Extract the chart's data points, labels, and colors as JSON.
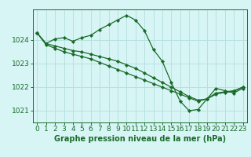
{
  "title": "Graphe pression niveau de la mer (hPa)",
  "bg_color": "#d8f5f5",
  "grid_color": "#b8e0e0",
  "line_color": "#1a6b2a",
  "ylim": [
    1020.5,
    1025.3
  ],
  "xlim": [
    -0.5,
    23.5
  ],
  "yticks": [
    1021,
    1022,
    1023,
    1024
  ],
  "xticks": [
    0,
    1,
    2,
    3,
    4,
    5,
    6,
    7,
    8,
    9,
    10,
    11,
    12,
    13,
    14,
    15,
    16,
    17,
    18,
    19,
    20,
    21,
    22,
    23
  ],
  "series1_x": [
    0,
    1,
    2,
    3,
    4,
    5,
    6,
    7,
    8,
    9,
    10,
    11,
    12,
    13,
    14,
    15,
    16,
    17,
    18,
    19,
    20,
    21,
    22,
    23
  ],
  "series1_y": [
    1024.3,
    1023.85,
    1024.05,
    1024.1,
    1023.95,
    1024.1,
    1024.2,
    1024.45,
    1024.65,
    1024.85,
    1025.05,
    1024.85,
    1024.4,
    1023.6,
    1023.1,
    1022.2,
    1021.4,
    1021.0,
    1021.05,
    1021.5,
    1021.95,
    1021.85,
    1021.75,
    1021.95
  ],
  "series2_x": [
    0,
    1,
    2,
    3,
    4,
    5,
    6,
    7,
    8,
    9,
    10,
    11,
    12,
    13,
    14,
    15,
    16,
    17,
    18,
    19,
    20,
    21,
    22,
    23
  ],
  "series2_y": [
    1024.3,
    1023.85,
    1023.75,
    1023.65,
    1023.55,
    1023.5,
    1023.4,
    1023.3,
    1023.2,
    1023.1,
    1022.95,
    1022.8,
    1022.6,
    1022.4,
    1022.2,
    1022.0,
    1021.8,
    1021.6,
    1021.45,
    1021.5,
    1021.75,
    1021.8,
    1021.85,
    1022.0
  ],
  "series3_x": [
    0,
    1,
    2,
    3,
    4,
    5,
    6,
    7,
    8,
    9,
    10,
    11,
    12,
    13,
    14,
    15,
    16,
    17,
    18,
    19,
    20,
    21,
    22,
    23
  ],
  "series3_y": [
    1024.3,
    1023.8,
    1023.65,
    1023.5,
    1023.4,
    1023.3,
    1023.2,
    1023.05,
    1022.9,
    1022.75,
    1022.6,
    1022.45,
    1022.3,
    1022.15,
    1022.0,
    1021.85,
    1021.7,
    1021.55,
    1021.4,
    1021.5,
    1021.7,
    1021.78,
    1021.82,
    1022.0
  ],
  "tick_fontsize": 6.5,
  "title_fontsize": 7.0,
  "marker": "D",
  "marker_size": 2.2,
  "linewidth": 0.9
}
